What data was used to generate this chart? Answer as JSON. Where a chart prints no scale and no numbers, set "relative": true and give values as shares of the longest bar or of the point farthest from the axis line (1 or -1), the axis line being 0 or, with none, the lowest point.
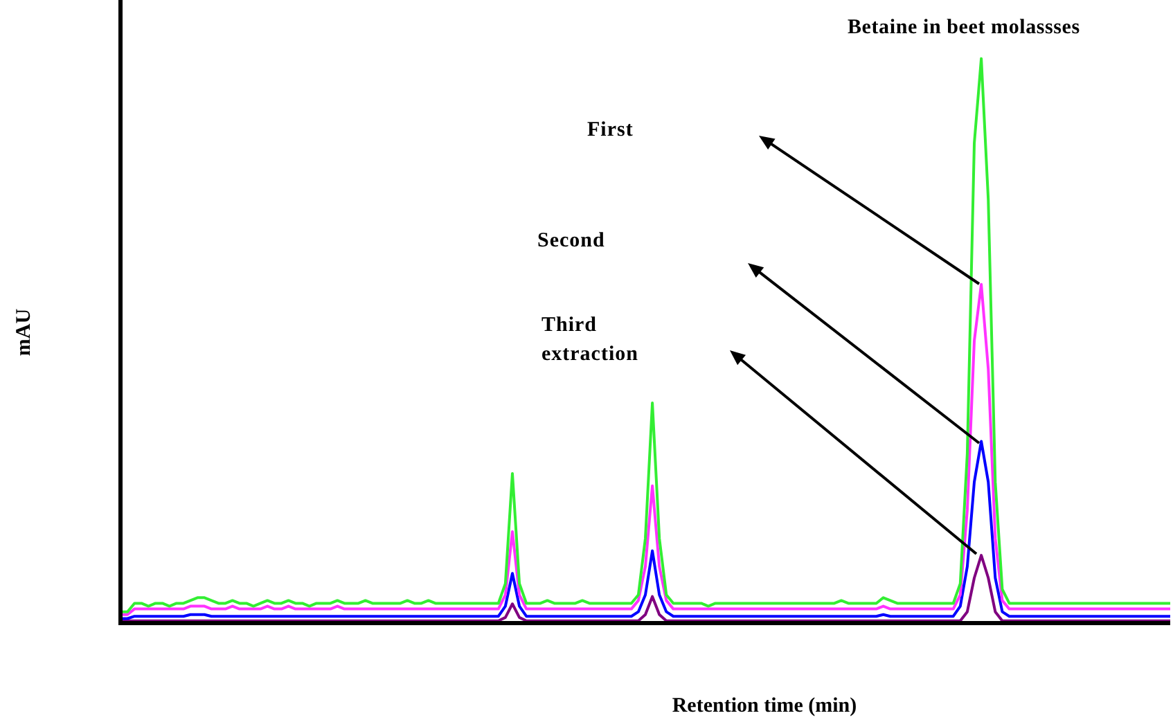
{
  "chart_data": {
    "type": "line",
    "relative": true,
    "title": "Betaine in beet molassses",
    "xlabel": "Retention time (min)",
    "ylabel": "mAU",
    "legend": false,
    "marker": "none",
    "line_style": "solid",
    "annotations": [
      "First",
      "Second",
      "Third extraction"
    ],
    "categories": [
      null,
      null,
      null,
      null,
      null,
      null,
      null,
      null,
      null,
      null,
      null,
      null,
      null,
      null,
      null,
      null,
      null,
      null,
      null,
      null,
      null,
      null,
      null,
      null,
      null,
      null,
      null,
      null,
      null,
      null,
      null,
      null,
      null,
      null,
      null,
      null,
      null,
      null,
      null,
      null,
      null,
      null,
      null,
      null,
      null,
      null,
      null,
      null,
      null,
      null,
      null,
      null,
      null,
      null,
      null,
      null,
      null,
      null,
      null,
      null,
      null,
      null,
      null,
      null,
      null,
      null,
      null,
      null,
      null,
      null,
      null,
      null,
      null,
      null,
      null,
      null,
      null,
      null,
      null,
      null,
      null,
      null,
      null,
      null,
      null,
      null,
      null,
      null,
      null,
      null,
      null,
      null,
      null,
      null,
      null,
      null,
      null,
      null,
      null,
      null,
      null,
      null,
      null,
      null,
      null,
      null,
      null,
      null,
      null,
      null,
      null,
      null,
      null,
      null,
      null,
      null,
      null,
      null,
      null,
      null,
      null,
      null,
      null,
      null,
      null,
      null,
      null,
      null,
      null,
      null,
      null,
      null,
      null,
      null,
      null,
      null,
      null,
      null,
      null,
      null,
      null,
      null,
      null,
      null,
      null,
      null,
      null,
      null,
      null,
      null,
      null
    ],
    "series": [
      {
        "color": "#33ee33",
        "values": [
          0.02,
          0.02,
          0.035,
          0.035,
          0.03,
          0.035,
          0.035,
          0.03,
          0.035,
          0.035,
          0.04,
          0.045,
          0.045,
          0.04,
          0.035,
          0.035,
          0.04,
          0.035,
          0.035,
          0.03,
          0.035,
          0.04,
          0.035,
          0.035,
          0.04,
          0.035,
          0.035,
          0.03,
          0.035,
          0.035,
          0.035,
          0.04,
          0.035,
          0.035,
          0.035,
          0.04,
          0.035,
          0.035,
          0.035,
          0.035,
          0.035,
          0.04,
          0.035,
          0.035,
          0.04,
          0.035,
          0.035,
          0.035,
          0.035,
          0.035,
          0.035,
          0.035,
          0.035,
          0.035,
          0.035,
          0.07,
          0.265,
          0.07,
          0.035,
          0.035,
          0.035,
          0.04,
          0.035,
          0.035,
          0.035,
          0.035,
          0.04,
          0.035,
          0.035,
          0.035,
          0.035,
          0.035,
          0.035,
          0.035,
          0.05,
          0.15,
          0.39,
          0.15,
          0.05,
          0.035,
          0.035,
          0.035,
          0.035,
          0.035,
          0.03,
          0.035,
          0.035,
          0.035,
          0.035,
          0.035,
          0.035,
          0.035,
          0.035,
          0.035,
          0.035,
          0.035,
          0.035,
          0.035,
          0.035,
          0.035,
          0.035,
          0.035,
          0.035,
          0.04,
          0.035,
          0.035,
          0.035,
          0.035,
          0.035,
          0.045,
          0.04,
          0.035,
          0.035,
          0.035,
          0.035,
          0.035,
          0.035,
          0.035,
          0.035,
          0.035,
          0.07,
          0.3,
          0.85,
          1,
          0.75,
          0.25,
          0.06,
          0.035,
          0.035,
          0.035,
          0.035,
          0.035,
          0.035,
          0.035,
          0.035,
          0.035,
          0.035,
          0.035,
          0.035,
          0.035,
          0.035,
          0.035,
          0.035,
          0.035,
          0.035,
          0.035,
          0.035,
          0.035,
          0.035,
          0.035,
          0.035
        ]
      },
      {
        "color": "#ff33ff",
        "values": [
          0.015,
          0.015,
          0.025,
          0.025,
          0.025,
          0.025,
          0.025,
          0.025,
          0.025,
          0.025,
          0.03,
          0.03,
          0.03,
          0.025,
          0.025,
          0.025,
          0.03,
          0.025,
          0.025,
          0.025,
          0.025,
          0.03,
          0.025,
          0.025,
          0.03,
          0.025,
          0.025,
          0.025,
          0.025,
          0.025,
          0.025,
          0.03,
          0.025,
          0.025,
          0.025,
          0.025,
          0.025,
          0.025,
          0.025,
          0.025,
          0.025,
          0.025,
          0.025,
          0.025,
          0.025,
          0.025,
          0.025,
          0.025,
          0.025,
          0.025,
          0.025,
          0.025,
          0.025,
          0.025,
          0.025,
          0.05,
          0.162,
          0.05,
          0.025,
          0.025,
          0.025,
          0.025,
          0.025,
          0.025,
          0.025,
          0.025,
          0.025,
          0.025,
          0.025,
          0.025,
          0.025,
          0.025,
          0.025,
          0.025,
          0.04,
          0.1,
          0.243,
          0.1,
          0.04,
          0.025,
          0.025,
          0.025,
          0.025,
          0.025,
          0.025,
          0.025,
          0.025,
          0.025,
          0.025,
          0.025,
          0.025,
          0.025,
          0.025,
          0.025,
          0.025,
          0.025,
          0.025,
          0.025,
          0.025,
          0.025,
          0.025,
          0.025,
          0.025,
          0.025,
          0.025,
          0.025,
          0.025,
          0.025,
          0.025,
          0.03,
          0.025,
          0.025,
          0.025,
          0.025,
          0.025,
          0.025,
          0.025,
          0.025,
          0.025,
          0.025,
          0.05,
          0.2,
          0.5,
          0.6,
          0.45,
          0.15,
          0.04,
          0.025,
          0.025,
          0.025,
          0.025,
          0.025,
          0.025,
          0.025,
          0.025,
          0.025,
          0.025,
          0.025,
          0.025,
          0.025,
          0.025,
          0.025,
          0.025,
          0.025,
          0.025,
          0.025,
          0.025,
          0.025,
          0.025,
          0.025,
          0.025
        ]
      },
      {
        "color": "#0000ff",
        "values": [
          0.008,
          0.008,
          0.012,
          0.012,
          0.012,
          0.012,
          0.012,
          0.012,
          0.012,
          0.012,
          0.015,
          0.015,
          0.015,
          0.012,
          0.012,
          0.012,
          0.012,
          0.012,
          0.012,
          0.012,
          0.012,
          0.012,
          0.012,
          0.012,
          0.012,
          0.012,
          0.012,
          0.012,
          0.012,
          0.012,
          0.012,
          0.012,
          0.012,
          0.012,
          0.012,
          0.012,
          0.012,
          0.012,
          0.012,
          0.012,
          0.012,
          0.012,
          0.012,
          0.012,
          0.012,
          0.012,
          0.012,
          0.012,
          0.012,
          0.012,
          0.012,
          0.012,
          0.012,
          0.012,
          0.012,
          0.03,
          0.088,
          0.03,
          0.012,
          0.012,
          0.012,
          0.012,
          0.012,
          0.012,
          0.012,
          0.012,
          0.012,
          0.012,
          0.012,
          0.012,
          0.012,
          0.012,
          0.012,
          0.012,
          0.02,
          0.05,
          0.128,
          0.05,
          0.02,
          0.012,
          0.012,
          0.012,
          0.012,
          0.012,
          0.012,
          0.012,
          0.012,
          0.012,
          0.012,
          0.012,
          0.012,
          0.012,
          0.012,
          0.012,
          0.012,
          0.012,
          0.012,
          0.012,
          0.012,
          0.012,
          0.012,
          0.012,
          0.012,
          0.012,
          0.012,
          0.012,
          0.012,
          0.012,
          0.012,
          0.015,
          0.012,
          0.012,
          0.012,
          0.012,
          0.012,
          0.012,
          0.012,
          0.012,
          0.012,
          0.012,
          0.03,
          0.1,
          0.25,
          0.322,
          0.25,
          0.08,
          0.02,
          0.012,
          0.012,
          0.012,
          0.012,
          0.012,
          0.012,
          0.012,
          0.012,
          0.012,
          0.012,
          0.012,
          0.012,
          0.012,
          0.012,
          0.012,
          0.012,
          0.012,
          0.012,
          0.012,
          0.012,
          0.012,
          0.012,
          0.012,
          0.012
        ]
      },
      {
        "color": "#800080",
        "values": [
          0.004,
          0.004,
          0.004,
          0.004,
          0.004,
          0.004,
          0.004,
          0.004,
          0.004,
          0.004,
          0.004,
          0.004,
          0.004,
          0.004,
          0.004,
          0.004,
          0.004,
          0.004,
          0.004,
          0.004,
          0.004,
          0.004,
          0.004,
          0.004,
          0.004,
          0.004,
          0.004,
          0.004,
          0.004,
          0.004,
          0.004,
          0.004,
          0.004,
          0.004,
          0.004,
          0.004,
          0.004,
          0.004,
          0.004,
          0.004,
          0.004,
          0.004,
          0.004,
          0.004,
          0.004,
          0.004,
          0.004,
          0.004,
          0.004,
          0.004,
          0.004,
          0.004,
          0.004,
          0.004,
          0.004,
          0.01,
          0.034,
          0.01,
          0.004,
          0.004,
          0.004,
          0.004,
          0.004,
          0.004,
          0.004,
          0.004,
          0.004,
          0.004,
          0.004,
          0.004,
          0.004,
          0.004,
          0.004,
          0.004,
          0.004,
          0.015,
          0.047,
          0.015,
          0.004,
          0.004,
          0.004,
          0.004,
          0.004,
          0.004,
          0.004,
          0.004,
          0.004,
          0.004,
          0.004,
          0.004,
          0.004,
          0.004,
          0.004,
          0.004,
          0.004,
          0.004,
          0.004,
          0.004,
          0.004,
          0.004,
          0.004,
          0.004,
          0.004,
          0.004,
          0.004,
          0.004,
          0.004,
          0.004,
          0.004,
          0.004,
          0.004,
          0.004,
          0.004,
          0.004,
          0.004,
          0.004,
          0.004,
          0.004,
          0.004,
          0.004,
          0.004,
          0.02,
          0.08,
          0.12,
          0.08,
          0.02,
          0.004,
          0.004,
          0.004,
          0.004,
          0.004,
          0.004,
          0.004,
          0.004,
          0.004,
          0.004,
          0.004,
          0.004,
          0.004,
          0.004,
          0.004,
          0.004,
          0.004,
          0.004,
          0.004,
          0.004,
          0.004,
          0.004,
          0.004,
          0.004,
          0.004
        ]
      }
    ]
  }
}
